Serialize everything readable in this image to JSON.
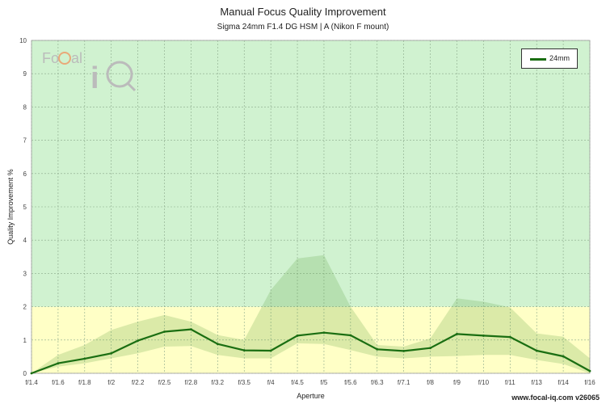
{
  "chart_data": {
    "type": "line",
    "title": "Manual Focus Quality Improvement",
    "subtitle": "Sigma 24mm F1.4 DG HSM | A (Nikon F mount)",
    "xlabel": "Aperture",
    "ylabel": "Quality Improvement %",
    "ylim": [
      0,
      10
    ],
    "yticks": [
      0,
      1,
      2,
      3,
      4,
      5,
      6,
      7,
      8,
      9,
      10
    ],
    "categories": [
      "f/1.4",
      "f/1.6",
      "f/1.8",
      "f/2",
      "f/2.2",
      "f/2.5",
      "f/2.8",
      "f/3.2",
      "f/3.5",
      "f/4",
      "f/4.5",
      "f/5",
      "f/5.6",
      "f/6.3",
      "f/7.1",
      "f/8",
      "f/9",
      "f/10",
      "f/11",
      "f/13",
      "f/14",
      "f/16"
    ],
    "series": [
      {
        "name": "24mm",
        "color": "#1a6e12",
        "values": [
          0.0,
          0.3,
          0.44,
          0.6,
          0.98,
          1.25,
          1.32,
          0.88,
          0.69,
          0.68,
          1.13,
          1.22,
          1.14,
          0.72,
          0.67,
          0.76,
          1.18,
          1.13,
          1.09,
          0.68,
          0.51,
          0.07
        ],
        "band_upper": [
          0.0,
          0.55,
          0.85,
          1.3,
          1.55,
          1.75,
          1.55,
          1.15,
          1.0,
          2.5,
          3.45,
          3.55,
          2.0,
          0.85,
          0.8,
          1.05,
          2.25,
          2.15,
          1.98,
          1.2,
          1.1,
          0.45
        ],
        "band_lower": [
          0.0,
          0.2,
          0.3,
          0.45,
          0.6,
          0.8,
          0.82,
          0.55,
          0.45,
          0.45,
          0.9,
          0.88,
          0.7,
          0.5,
          0.45,
          0.5,
          0.52,
          0.55,
          0.55,
          0.4,
          0.28,
          0.0
        ]
      }
    ],
    "zones": [
      {
        "from": 0,
        "to": 2,
        "color": "#ffffc6"
      },
      {
        "from": 2,
        "to": 10,
        "color": "#d0f2d0"
      }
    ],
    "grid": true,
    "legend_position": "top-right"
  },
  "logo": {
    "text_focal": "FoCal",
    "text_iq": "iQ"
  },
  "watermark": "www.focal-iq.com  v26065"
}
